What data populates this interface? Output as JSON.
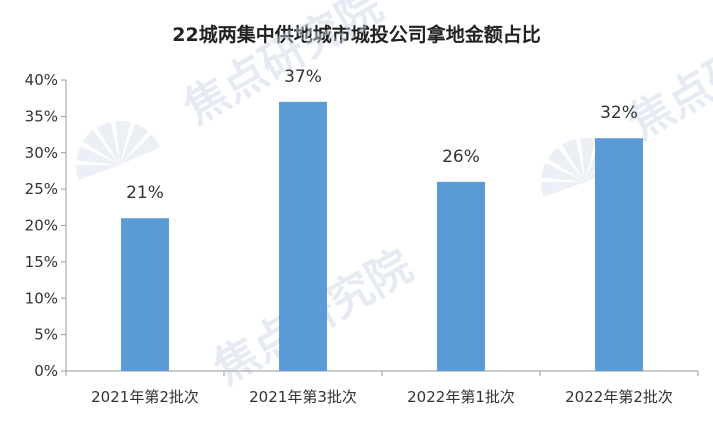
{
  "chart_data": {
    "type": "bar",
    "title": "22城两集中供地城市城投公司拿地金额占比",
    "categories": [
      "2021年第2批次",
      "2021年第3批次",
      "2022年第1批次",
      "2022年第2批次"
    ],
    "values": [
      21,
      37,
      26,
      32
    ],
    "data_labels": [
      "21%",
      "37%",
      "26%",
      "32%"
    ],
    "ylim": [
      0,
      40
    ],
    "yticks": [
      "0%",
      "5%",
      "10%",
      "15%",
      "20%",
      "25%",
      "30%",
      "35%",
      "40%"
    ],
    "xlabel": "",
    "ylabel": "",
    "grid": false,
    "legend": "none",
    "bar_color": "#5b9bd5"
  },
  "watermark": {
    "text": "焦点研究院",
    "color": "#c9d5e6"
  }
}
